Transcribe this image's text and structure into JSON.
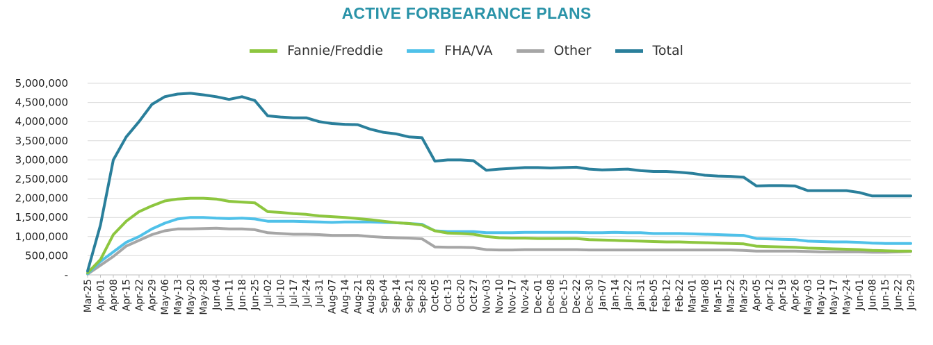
{
  "chart_data": {
    "type": "line",
    "title": "ACTIVE FORBEARANCE PLANS",
    "xlabel": "",
    "ylabel": "",
    "ylim": [
      0,
      5000000
    ],
    "grid": true,
    "legend_position": "top",
    "y_ticks": [
      "-",
      "500,000",
      "1,000,000",
      "1,500,000",
      "2,000,000",
      "2,500,000",
      "3,000,000",
      "3,500,000",
      "4,000,000",
      "4,500,000",
      "5,000,000"
    ],
    "x": [
      "Mar-25",
      "Apr-01",
      "Apr-08",
      "Apr-15",
      "Apr-22",
      "Apr-29",
      "May-06",
      "May-13",
      "May-20",
      "May-28",
      "Jun-04",
      "Jun-11",
      "Jun-18",
      "Jun-25",
      "Jul-02",
      "Jul-10",
      "Jul-17",
      "Jul-24",
      "Jul-31",
      "Aug-07",
      "Aug-14",
      "Aug-21",
      "Aug-28",
      "Sep-04",
      "Sep-14",
      "Sep-21",
      "Sep-28",
      "Oct-05",
      "Oct-13",
      "Oct-20",
      "Oct-27",
      "Nov-03",
      "Nov-10",
      "Nov-17",
      "Nov-24",
      "Dec-01",
      "Dec-08",
      "Dec-15",
      "Dec-22",
      "Dec-30",
      "Jan-07",
      "Jan-14",
      "Jan-22",
      "Jan-31",
      "Feb-05",
      "Feb-12",
      "Feb-22",
      "Mar-01",
      "Mar-08",
      "Mar-15",
      "Mar-22",
      "Mar-29",
      "Apr-05",
      "Apr-12",
      "Apr-19",
      "Apr-26",
      "May-03",
      "May-10",
      "May-17",
      "May-24",
      "Jun-01",
      "Jun-08",
      "Jun-15",
      "Jun-22",
      "Jun-29"
    ],
    "series": [
      {
        "name": "Total",
        "color": "#2a7f9b",
        "values": [
          100000,
          1300000,
          3000000,
          3600000,
          4000000,
          4450000,
          4650000,
          4720000,
          4740000,
          4700000,
          4650000,
          4580000,
          4650000,
          4550000,
          4150000,
          4120000,
          4100000,
          4100000,
          4000000,
          3950000,
          3930000,
          3920000,
          3800000,
          3720000,
          3680000,
          3600000,
          3580000,
          2970000,
          3000000,
          3000000,
          2980000,
          2730000,
          2760000,
          2780000,
          2800000,
          2800000,
          2790000,
          2800000,
          2810000,
          2760000,
          2740000,
          2750000,
          2760000,
          2720000,
          2700000,
          2700000,
          2680000,
          2650000,
          2600000,
          2580000,
          2570000,
          2550000,
          2320000,
          2330000,
          2330000,
          2320000,
          2200000,
          2200000,
          2200000,
          2200000,
          2150000,
          2060000,
          2060000,
          2060000,
          2060000
        ]
      },
      {
        "name": "Fannie/Freddie",
        "color": "#8dc63f",
        "values": [
          50000,
          400000,
          1050000,
          1400000,
          1650000,
          1800000,
          1930000,
          1980000,
          2000000,
          2000000,
          1980000,
          1920000,
          1900000,
          1880000,
          1650000,
          1630000,
          1600000,
          1580000,
          1540000,
          1520000,
          1500000,
          1470000,
          1440000,
          1400000,
          1360000,
          1340000,
          1300000,
          1150000,
          1090000,
          1080000,
          1060000,
          1000000,
          970000,
          960000,
          960000,
          950000,
          950000,
          950000,
          950000,
          920000,
          910000,
          900000,
          890000,
          880000,
          870000,
          860000,
          860000,
          850000,
          840000,
          830000,
          820000,
          810000,
          750000,
          740000,
          730000,
          720000,
          700000,
          690000,
          680000,
          670000,
          660000,
          640000,
          630000,
          620000,
          620000
        ]
      },
      {
        "name": "FHA/VA",
        "color": "#4fc1e9",
        "values": [
          30000,
          350000,
          600000,
          850000,
          1000000,
          1200000,
          1350000,
          1460000,
          1500000,
          1500000,
          1480000,
          1470000,
          1480000,
          1460000,
          1400000,
          1400000,
          1400000,
          1390000,
          1380000,
          1370000,
          1380000,
          1380000,
          1380000,
          1370000,
          1360000,
          1340000,
          1320000,
          1150000,
          1130000,
          1130000,
          1130000,
          1100000,
          1100000,
          1100000,
          1110000,
          1110000,
          1110000,
          1110000,
          1110000,
          1100000,
          1100000,
          1110000,
          1100000,
          1100000,
          1080000,
          1080000,
          1080000,
          1070000,
          1060000,
          1050000,
          1040000,
          1030000,
          950000,
          940000,
          930000,
          920000,
          880000,
          870000,
          860000,
          860000,
          850000,
          830000,
          820000,
          820000,
          820000
        ]
      },
      {
        "name": "Other",
        "color": "#a6a6a6",
        "values": [
          20000,
          250000,
          480000,
          750000,
          900000,
          1050000,
          1150000,
          1200000,
          1200000,
          1210000,
          1220000,
          1200000,
          1200000,
          1180000,
          1100000,
          1080000,
          1060000,
          1060000,
          1050000,
          1030000,
          1030000,
          1030000,
          1000000,
          980000,
          970000,
          960000,
          940000,
          730000,
          720000,
          720000,
          710000,
          660000,
          650000,
          650000,
          660000,
          660000,
          660000,
          660000,
          660000,
          650000,
          650000,
          650000,
          650000,
          650000,
          650000,
          650000,
          650000,
          650000,
          650000,
          650000,
          650000,
          640000,
          620000,
          620000,
          620000,
          620000,
          610000,
          600000,
          600000,
          600000,
          600000,
          590000,
          590000,
          600000,
          610000
        ]
      }
    ]
  },
  "legend": {
    "items": [
      {
        "label": "Fannie/Freddie",
        "color": "#8dc63f"
      },
      {
        "label": "FHA/VA",
        "color": "#4fc1e9"
      },
      {
        "label": "Other",
        "color": "#a6a6a6"
      },
      {
        "label": "Total",
        "color": "#2a7f9b"
      }
    ]
  },
  "colors": {
    "title": "#2a93a8",
    "grid": "#d9d9d9",
    "axis": "#bfbfbf"
  }
}
